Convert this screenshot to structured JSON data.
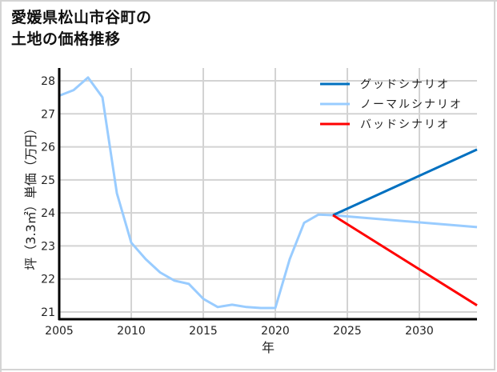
{
  "title": {
    "line1": "愛媛県松山市谷町の",
    "line2": "土地の価格推移"
  },
  "chart_data": {
    "type": "line",
    "title": "愛媛県松山市谷町の土地の価格推移",
    "xlabel": "年",
    "ylabel": "坪（3.3㎡）単価（万円）",
    "xlim": [
      2005,
      2034
    ],
    "ylim": [
      20.8,
      28.4
    ],
    "x_ticks": [
      2005,
      2010,
      2015,
      2020,
      2025,
      2030
    ],
    "y_ticks": [
      21,
      22,
      23,
      24,
      25,
      26,
      27,
      28
    ],
    "grid": true,
    "legend_position": "upper right",
    "colors": {
      "good": "#0070c0",
      "normal": "#99ccff",
      "bad": "#ff0000"
    },
    "series": [
      {
        "name": "グッドシナリオ",
        "color": "#0070c0",
        "x": [
          2024,
          2034
        ],
        "values": [
          23.93,
          25.92
        ]
      },
      {
        "name": "ノーマルシナリオ",
        "color": "#99ccff",
        "x": [
          2005,
          2006,
          2007,
          2008,
          2009,
          2010,
          2011,
          2012,
          2013,
          2014,
          2015,
          2016,
          2017,
          2018,
          2019,
          2020,
          2021,
          2022,
          2023,
          2024,
          2034
        ],
        "values": [
          27.55,
          27.72,
          28.1,
          27.5,
          24.6,
          23.1,
          22.6,
          22.2,
          21.95,
          21.85,
          21.4,
          21.15,
          21.22,
          21.15,
          21.12,
          21.12,
          22.6,
          23.7,
          23.95,
          23.93,
          23.57
        ]
      },
      {
        "name": "バッドシナリオ",
        "color": "#ff0000",
        "x": [
          2024,
          2034
        ],
        "values": [
          23.93,
          21.2
        ]
      }
    ]
  },
  "legend": {
    "items": [
      {
        "label": "グッドシナリオ",
        "color": "#0070c0"
      },
      {
        "label": "ノーマルシナリオ",
        "color": "#99ccff"
      },
      {
        "label": "バッドシナリオ",
        "color": "#ff0000"
      }
    ]
  },
  "axes": {
    "xlabel": "年",
    "ylabel": "坪（3.3㎡）単価（万円）",
    "x_tick_labels": [
      "2005",
      "2010",
      "2015",
      "2020",
      "2025",
      "2030"
    ],
    "y_tick_labels": [
      "21",
      "22",
      "23",
      "24",
      "25",
      "26",
      "27",
      "28"
    ]
  }
}
